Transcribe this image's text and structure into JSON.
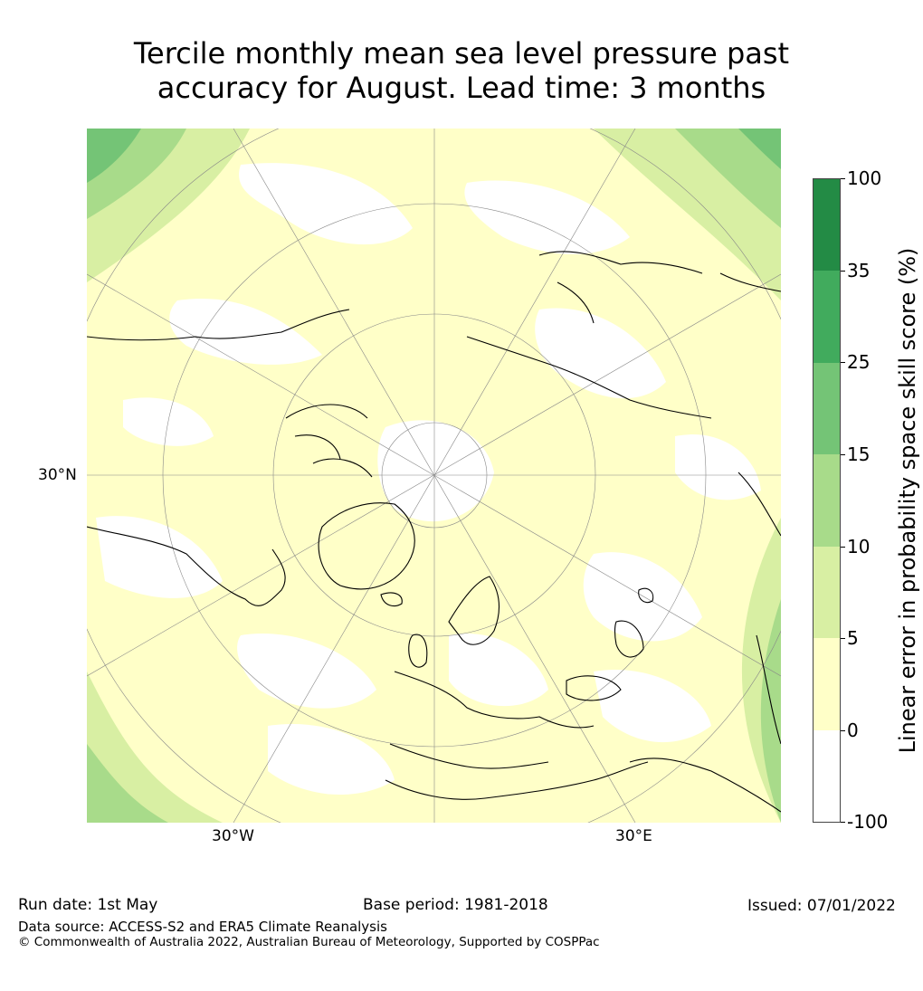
{
  "title_line1": "Tercile monthly mean sea level pressure past",
  "title_line2": "accuracy for August. Lead time: 3 months",
  "map": {
    "lon_labels": [
      "30°W",
      "30°E"
    ],
    "lat_label": "30°N",
    "colors": {
      "land_outline": "#000000",
      "graticule": "#888888",
      "background_band": "#ffffc8"
    }
  },
  "colorbar": {
    "label": "Linear error in probability space skill score (%)",
    "ticks": [
      "100",
      "35",
      "25",
      "15",
      "10",
      "5",
      "0",
      "-100"
    ],
    "colors": [
      "#ffffff",
      "#ffffc8",
      "#d8efa3",
      "#a8db8a",
      "#74c476",
      "#41ab5d",
      "#238b45"
    ]
  },
  "footer": {
    "run_date": "Run date: 1st May",
    "base_period": "Base period: 1981-2018",
    "issued": "Issued: 07/01/2022",
    "data_source": "Data source: ACCESS-S2 and ERA5 Climate Reanalysis",
    "copyright": "© Commonwealth of Australia 2022, Australian Bureau of Meteorology, Supported by COSPPac"
  }
}
